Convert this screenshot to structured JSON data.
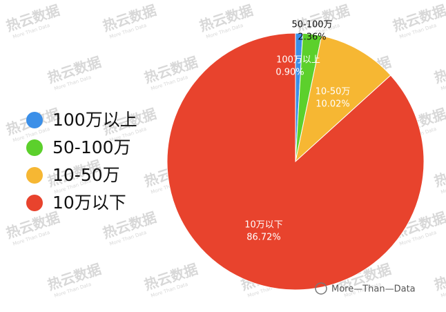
{
  "chart_data": {
    "type": "pie",
    "categories": [
      "100万以上",
      "50-100万",
      "10-50万",
      "10万以下"
    ],
    "values": [
      0.9,
      2.36,
      10.02,
      86.72
    ],
    "value_labels": [
      "0.90%",
      "2.36%",
      "10.02%",
      "86.72%"
    ],
    "colors": [
      "#3b8fe8",
      "#5cd02c",
      "#f6b733",
      "#e8432d"
    ],
    "legend": "left"
  },
  "watermark": {
    "text": "热云数据",
    "subtext": "More Than Data"
  },
  "source": "More—Than—Data"
}
